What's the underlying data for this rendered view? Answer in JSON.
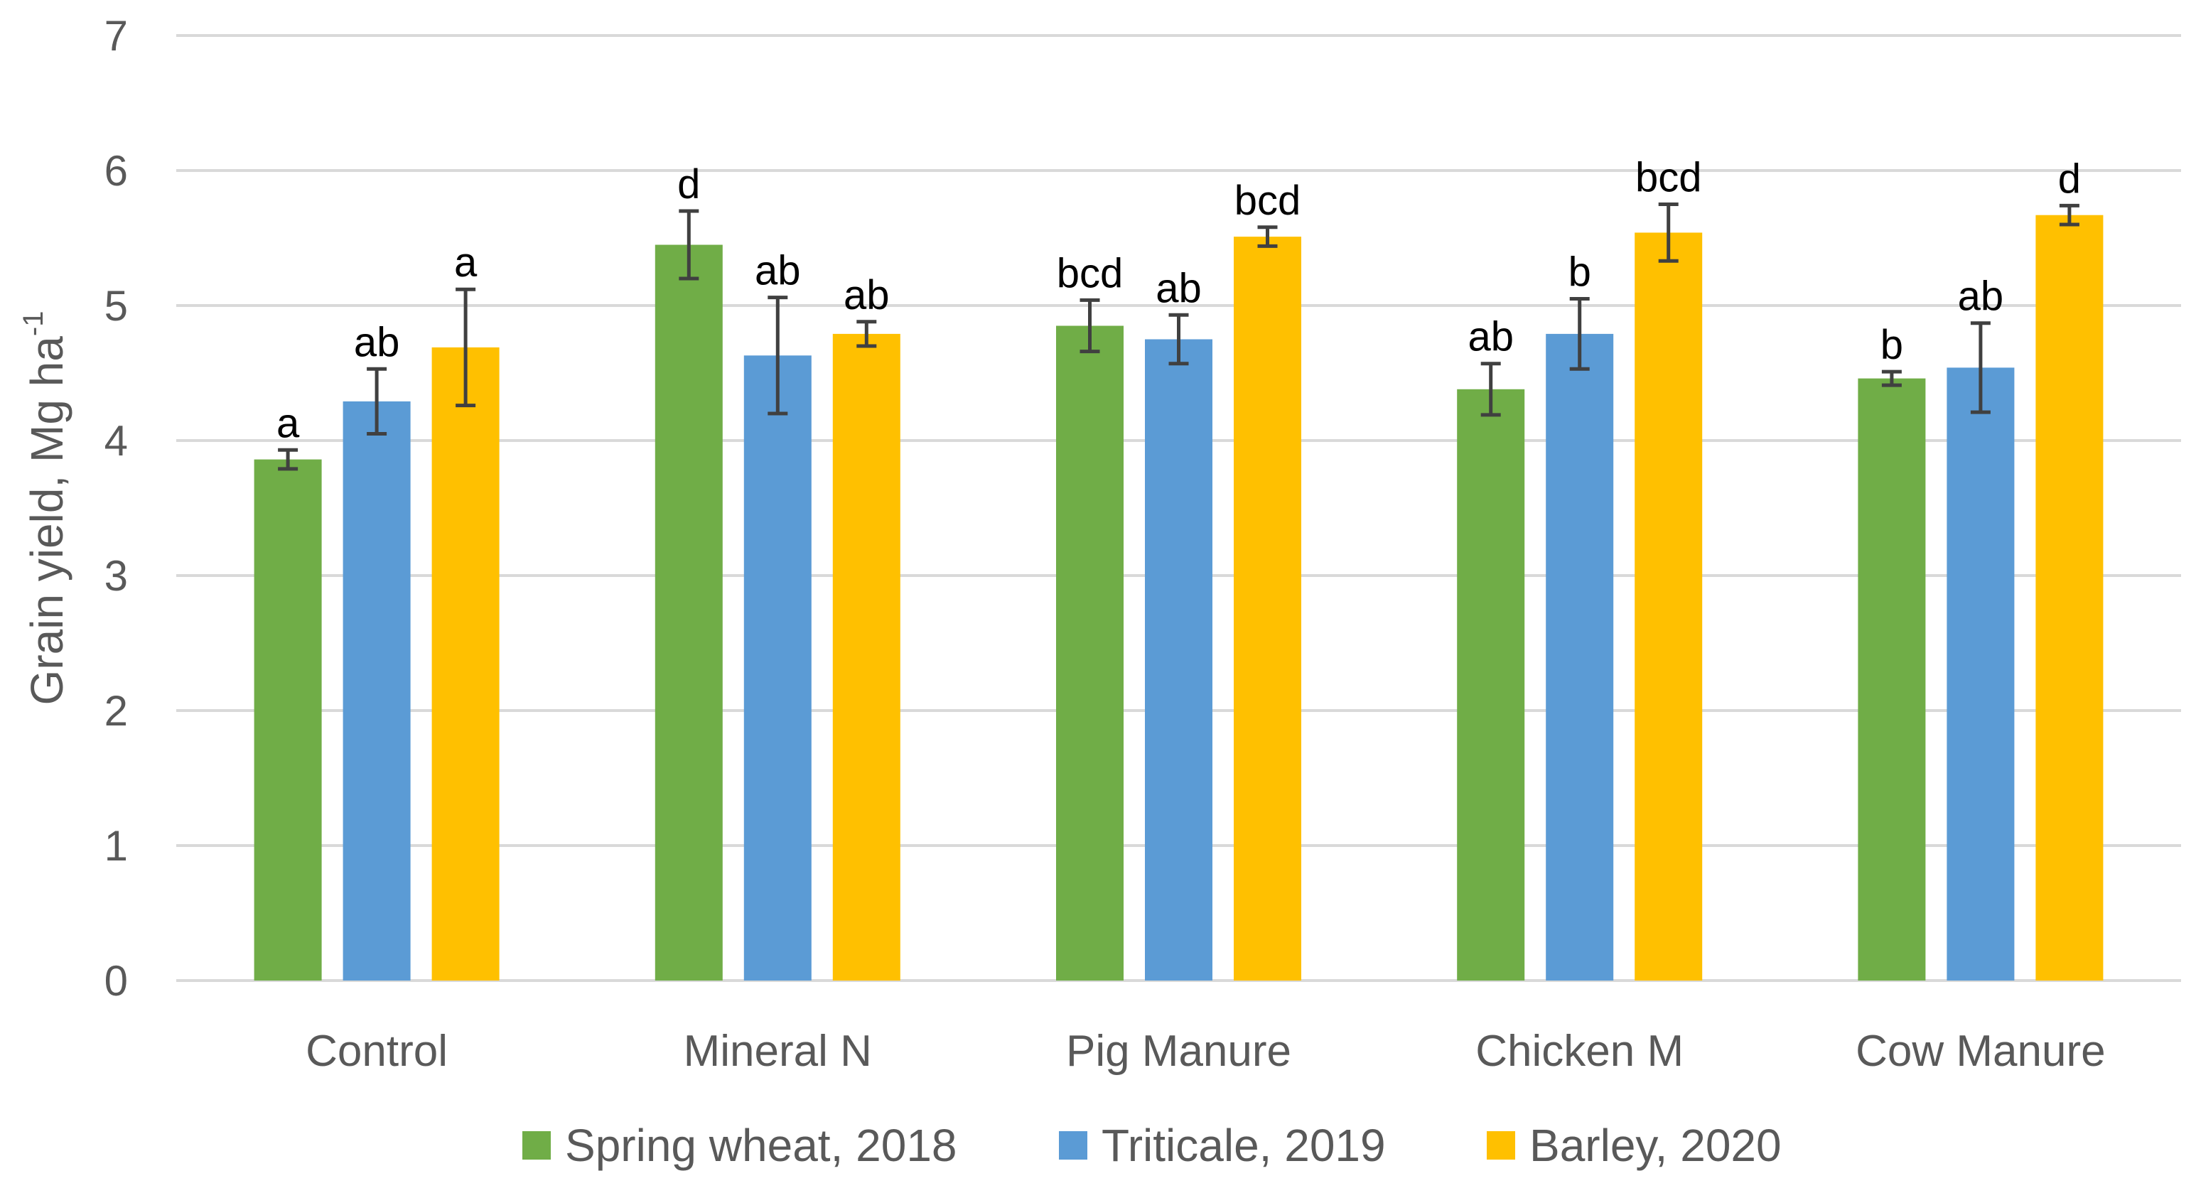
{
  "chart_data": {
    "type": "bar",
    "title": "",
    "xlabel": "",
    "ylabel": "Grain yield, Mg ha",
    "ylabel_superscript": "-1",
    "ylim": [
      0,
      7
    ],
    "yticks": [
      0,
      1,
      2,
      3,
      4,
      5,
      6,
      7
    ],
    "grid": true,
    "legend_position": "bottom",
    "categories": [
      "Control",
      "Mineral N",
      "Pig Manure",
      "Chicken M",
      "Cow Manure"
    ],
    "series": [
      {
        "name": "Spring wheat, 2018",
        "color": "#70AD47",
        "values": [
          3.86,
          5.45,
          4.85,
          4.38,
          4.46
        ],
        "errors": [
          0.07,
          0.25,
          0.19,
          0.19,
          0.05
        ],
        "labels": [
          "a",
          "d",
          "bcd",
          "ab",
          "b"
        ]
      },
      {
        "name": "Triticale, 2019",
        "color": "#5B9BD5",
        "values": [
          4.29,
          4.63,
          4.75,
          4.79,
          4.54
        ],
        "errors": [
          0.24,
          0.43,
          0.18,
          0.26,
          0.33
        ],
        "labels": [
          "ab",
          "ab",
          "ab",
          "b",
          "ab"
        ]
      },
      {
        "name": "Barley, 2020",
        "color": "#FFC000",
        "values": [
          4.69,
          4.79,
          5.51,
          5.54,
          5.67
        ],
        "errors": [
          0.43,
          0.09,
          0.07,
          0.21,
          0.07
        ],
        "labels": [
          "a",
          "ab",
          "bcd",
          "bcd",
          "d"
        ]
      }
    ]
  }
}
